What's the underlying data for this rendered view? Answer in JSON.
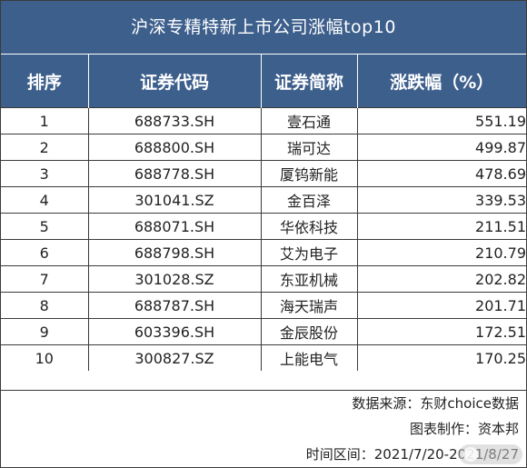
{
  "table": {
    "title": "沪深专精特新上市公司涨幅top10",
    "headers": [
      "排序",
      "证券代码",
      "证券简称",
      "涨跌幅（%）"
    ],
    "rows": [
      {
        "rank": "1",
        "code": "688733.SH",
        "name": "壹石通",
        "pct": "551.19"
      },
      {
        "rank": "2",
        "code": "688800.SH",
        "name": "瑞可达",
        "pct": "499.87"
      },
      {
        "rank": "3",
        "code": "688778.SH",
        "name": "厦钨新能",
        "pct": "478.69"
      },
      {
        "rank": "4",
        "code": "301041.SZ",
        "name": "金百泽",
        "pct": "339.53"
      },
      {
        "rank": "5",
        "code": "688071.SH",
        "name": "华依科技",
        "pct": "211.51"
      },
      {
        "rank": "6",
        "code": "688798.SH",
        "name": "艾为电子",
        "pct": "210.79"
      },
      {
        "rank": "7",
        "code": "301028.SZ",
        "name": "东亚机械",
        "pct": "202.82"
      },
      {
        "rank": "8",
        "code": "688787.SH",
        "name": "海天瑞声",
        "pct": "201.71"
      },
      {
        "rank": "9",
        "code": "603396.SH",
        "name": "金辰股份",
        "pct": "172.51"
      },
      {
        "rank": "10",
        "code": "300827.SZ",
        "name": "上能电气",
        "pct": "170.25"
      }
    ]
  },
  "footer": {
    "source": "数据来源：东财choice数据",
    "maker": "图表制作：资本邦",
    "period": "时间区间：2021/7/20-2021/8/27"
  },
  "colors": {
    "header_bg": "#3d5f8c",
    "header_text": "#ffffff"
  }
}
